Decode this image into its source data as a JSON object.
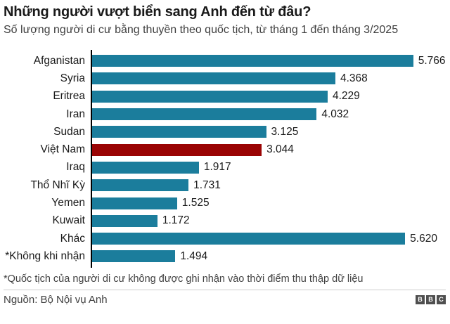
{
  "header": {
    "title": "Những người vượt biển sang Anh đến từ đâu?",
    "subtitle": "Số lượng người di cư bằng thuyền theo quốc tịch, từ tháng 1 đến tháng 3/2025"
  },
  "chart_data": {
    "type": "bar",
    "orientation": "horizontal",
    "title": "Những người vượt biển sang Anh đến từ đâu?",
    "subtitle": "Số lượng người di cư bằng thuyền theo quốc tịch, từ tháng 1 đến tháng 3/2025",
    "categories": [
      "Afganistan",
      "Syria",
      "Eritrea",
      "Iran",
      "Sudan",
      "Việt Nam",
      "Iraq",
      "Thổ Nhĩ Kỳ",
      "Yemen",
      "Kuwait",
      "Khác",
      "*Không khi nhận"
    ],
    "values": [
      5766,
      4368,
      4229,
      4032,
      3125,
      3044,
      1917,
      1731,
      1525,
      1172,
      5620,
      1494
    ],
    "value_labels": [
      "5.766",
      "4.368",
      "4.229",
      "4.032",
      "3.125",
      "3.044",
      "1.917",
      "1.731",
      "1.525",
      "1.172",
      "5.620",
      "1.494"
    ],
    "highlighted_category": "Việt Nam",
    "xlim": [
      0,
      6350
    ],
    "grid": false,
    "legend": "none",
    "bar_color": "#1b7d9c",
    "highlight_color": "#9a0404",
    "value_labels_shown": true
  },
  "footnote": "*Quốc tịch của người di cư không được ghi nhận vào thời điểm thu thập dữ liệu",
  "footer": {
    "source": "Nguồn: Bộ Nội vụ Anh",
    "logo_blocks": [
      "B",
      "B",
      "C"
    ]
  }
}
